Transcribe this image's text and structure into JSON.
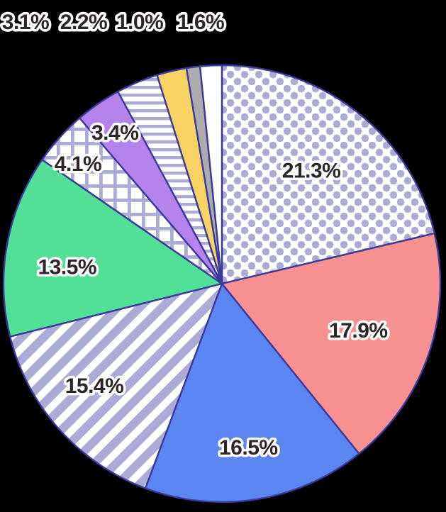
{
  "chart_data": {
    "type": "pie",
    "title": "",
    "legend": "none",
    "start_angle_deg": 0,
    "direction": "clockwise",
    "slices": [
      {
        "label": "21.3%",
        "value": 21.3,
        "fill": "pattern:dots",
        "label_placement": "inside"
      },
      {
        "label": "17.9%",
        "value": 17.9,
        "fill": "#F99091",
        "label_placement": "inside"
      },
      {
        "label": "16.5%",
        "value": 16.5,
        "fill": "#5B85F0",
        "label_placement": "inside"
      },
      {
        "label": "15.4%",
        "value": 15.4,
        "fill": "pattern:diagonal-stripes",
        "label_placement": "inside"
      },
      {
        "label": "13.5%",
        "value": 13.5,
        "fill": "#51E095",
        "label_placement": "inside"
      },
      {
        "label": "4.1%",
        "value": 4.1,
        "fill": "pattern:crosshatch",
        "label_placement": "inside"
      },
      {
        "label": "3.4%",
        "value": 3.4,
        "fill": "#B583EC",
        "label_placement": "inside"
      },
      {
        "label": "3.1%",
        "value": 3.1,
        "fill": "pattern:horizontal-stripes",
        "label_placement": "top-row"
      },
      {
        "label": "2.2%",
        "value": 2.2,
        "fill": "#F8D263",
        "label_placement": "top-row"
      },
      {
        "label": "1.0%",
        "value": 1.0,
        "fill": "#ACACAC",
        "label_placement": "top-row"
      },
      {
        "label": "1.6%",
        "value": 1.6,
        "fill": "#FFFFFF",
        "label_placement": "top-row"
      }
    ],
    "colors": {
      "outline": "#3B3A9B",
      "pattern_ink": "#ABABD5",
      "pattern_bg": "#FFFFFF",
      "label_text": "#2E2528",
      "label_halo": "#FFFFFF",
      "background": "#000000"
    }
  }
}
